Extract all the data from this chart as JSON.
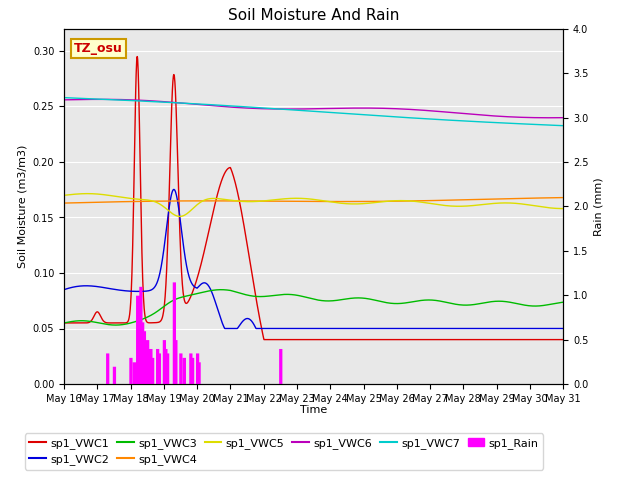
{
  "title": "Soil Moisture And Rain",
  "xlabel": "Time",
  "ylabel_left": "Soil Moisture (m3/m3)",
  "ylabel_right": "Rain (mm)",
  "annotation": "TZ_osu",
  "annotation_facecolor": "#ffffcc",
  "annotation_edgecolor": "#cc9900",
  "background_color": "#e8e8e8",
  "ylim_left": [
    0.0,
    0.32
  ],
  "ylim_right": [
    0.0,
    4.0
  ],
  "yticks_left": [
    0.0,
    0.05,
    0.1,
    0.15,
    0.2,
    0.25,
    0.3
  ],
  "yticks_right": [
    0.0,
    0.5,
    1.0,
    1.5,
    2.0,
    2.5,
    3.0,
    3.5,
    4.0
  ],
  "line_colors": {
    "sp1_VWC1": "#dd0000",
    "sp1_VWC2": "#0000dd",
    "sp1_VWC3": "#00bb00",
    "sp1_VWC4": "#ff8800",
    "sp1_VWC5": "#dddd00",
    "sp1_VWC6": "#bb00bb",
    "sp1_VWC7": "#00cccc",
    "sp1_Rain": "#ff00ff"
  },
  "grid_color": "#ffffff",
  "title_fontsize": 11,
  "legend_fontsize": 8,
  "axis_fontsize": 8,
  "tick_fontsize": 7
}
